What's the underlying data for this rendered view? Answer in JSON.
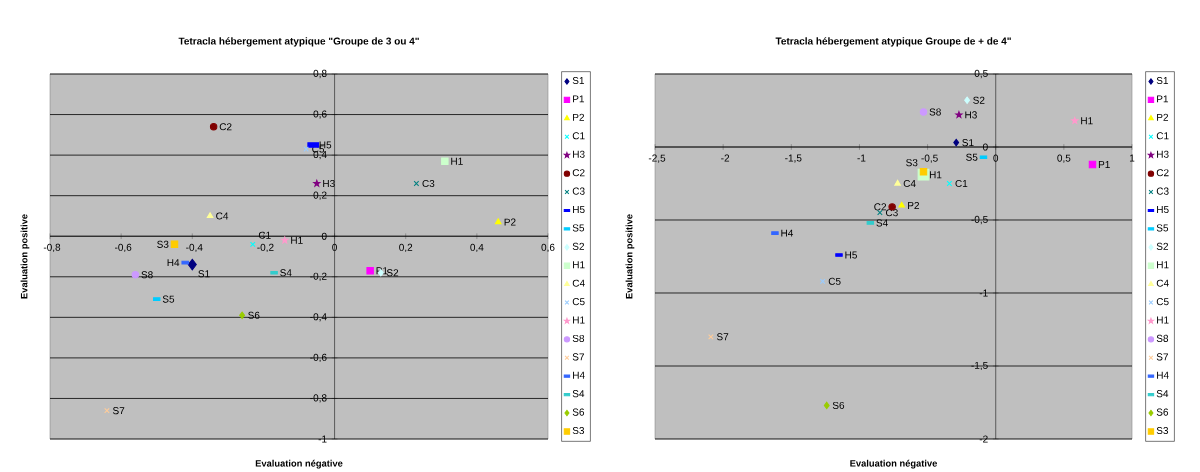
{
  "chart_data": [
    {
      "type": "scatter",
      "title": "Tetracla hébergement atypique \"Groupe de 3 ou 4\"",
      "xlabel": "Evaluation négative",
      "ylabel": "Evaluation positive",
      "xlim": [
        -0.8,
        0.6
      ],
      "ylim": [
        -1,
        0.8
      ],
      "xticks": [
        {
          "value": -0.8,
          "label": "-0,8"
        },
        {
          "value": -0.6,
          "label": "-0,6"
        },
        {
          "value": -0.4,
          "label": "-0,4"
        },
        {
          "value": -0.2,
          "label": "-0,2"
        },
        0,
        {
          "value": 0.2,
          "label": "0,2"
        },
        {
          "value": 0.4,
          "label": "0,4"
        },
        {
          "value": 0.6,
          "label": "0,6"
        }
      ],
      "yticks": [
        -1,
        {
          "value": -0.8,
          "label": "-0,8"
        },
        {
          "value": -0.6,
          "label": "-0,6"
        },
        {
          "value": -0.4,
          "label": "-0,4"
        },
        {
          "value": -0.2,
          "label": "-0,2"
        },
        0,
        {
          "value": 0.2,
          "label": "0,2"
        },
        {
          "value": 0.4,
          "label": "0,4"
        },
        {
          "value": 0.6,
          "label": "0,6"
        },
        {
          "value": 0.8,
          "label": "0,8"
        }
      ],
      "grid": "y",
      "legend": "right",
      "series": [
        {
          "name": "S1",
          "color": "#000080",
          "marker": "diamond",
          "x": [
            -0.4
          ],
          "values": [
            -0.14
          ]
        },
        {
          "name": "P1",
          "color": "#ff00ff",
          "marker": "square",
          "x": [
            0.1
          ],
          "values": [
            -0.17
          ]
        },
        {
          "name": "P2",
          "color": "#ffff00",
          "marker": "triangle",
          "x": [
            0.46
          ],
          "values": [
            0.07
          ]
        },
        {
          "name": "C1",
          "color": "#00ffff",
          "marker": "cross",
          "x": [
            -0.23
          ],
          "values": [
            -0.04
          ]
        },
        {
          "name": "H3",
          "color": "#800080",
          "marker": "star",
          "x": [
            -0.05
          ],
          "values": [
            0.26
          ]
        },
        {
          "name": "C2",
          "color": "#800000",
          "marker": "circle",
          "x": [
            -0.34
          ],
          "values": [
            0.54
          ]
        },
        {
          "name": "C3",
          "color": "#008080",
          "marker": "cross",
          "x": [
            0.23
          ],
          "values": [
            0.26
          ]
        },
        {
          "name": "H5",
          "color": "#0000ff",
          "marker": "square",
          "x": [
            -0.06
          ],
          "values": [
            0.45
          ]
        },
        {
          "name": "S5",
          "color": "#00ccff",
          "marker": "square",
          "x": [
            -0.5
          ],
          "values": [
            -0.31
          ]
        },
        {
          "name": "S2",
          "color": "#ccffff",
          "marker": "diamond",
          "x": [
            0.13
          ],
          "values": [
            -0.18
          ]
        },
        {
          "name": "H1",
          "color": "#ccffcc",
          "marker": "square",
          "x": [
            0.31
          ],
          "values": [
            0.37
          ]
        },
        {
          "name": "C4",
          "color": "#ffff99",
          "marker": "triangle",
          "x": [
            -0.35
          ],
          "values": [
            0.1
          ]
        },
        {
          "name": "C5",
          "color": "#99ccff",
          "marker": "cross",
          "x": [
            -0.08
          ],
          "values": [
            0.43
          ]
        },
        {
          "name": "H1",
          "color": "#ff99cc",
          "marker": "star",
          "x": [
            -0.14
          ],
          "values": [
            -0.02
          ]
        },
        {
          "name": "S8",
          "color": "#cc99ff",
          "marker": "circle",
          "x": [
            -0.56
          ],
          "values": [
            -0.19
          ]
        },
        {
          "name": "S7",
          "color": "#ffcc99",
          "marker": "cross",
          "x": [
            -0.64
          ],
          "values": [
            -0.86
          ]
        },
        {
          "name": "H4",
          "color": "#3366ff",
          "marker": "square",
          "x": [
            -0.42
          ],
          "values": [
            -0.13
          ]
        },
        {
          "name": "S4",
          "color": "#33cccc",
          "marker": "square",
          "x": [
            -0.17
          ],
          "values": [
            -0.18
          ]
        },
        {
          "name": "S6",
          "color": "#99cc00",
          "marker": "diamond",
          "x": [
            -0.26
          ],
          "values": [
            -0.39
          ]
        },
        {
          "name": "S3",
          "color": "#ffcc00",
          "marker": "square",
          "x": [
            -0.45
          ],
          "values": [
            -0.04
          ]
        }
      ]
    },
    {
      "type": "scatter",
      "title": "Tetracla hébergement atypique Groupe de + de 4\"",
      "xlabel": "Evaluation négative",
      "ylabel": "Evaluation positive",
      "xlim": [
        -2.5,
        1
      ],
      "ylim": [
        -2,
        0.5
      ],
      "xticks": [
        {
          "value": -2.5,
          "label": "-2,5"
        },
        -2,
        {
          "value": -1.5,
          "label": "-1,5"
        },
        -1,
        {
          "value": -0.5,
          "label": "-0,5"
        },
        0,
        {
          "value": 0.5,
          "label": "0,5"
        },
        1
      ],
      "yticks": [
        -2,
        {
          "value": -1.5,
          "label": "-1,5"
        },
        -1,
        {
          "value": -0.5,
          "label": "-0,5"
        },
        0,
        {
          "value": 0.5,
          "label": "0,5"
        }
      ],
      "grid": "y",
      "legend": "right",
      "series": [
        {
          "name": "S1",
          "color": "#000080",
          "marker": "diamond",
          "x": [
            -0.29
          ],
          "values": [
            0.03
          ]
        },
        {
          "name": "P1",
          "color": "#ff00ff",
          "marker": "square",
          "x": [
            0.71
          ],
          "values": [
            -0.12
          ]
        },
        {
          "name": "P2",
          "color": "#ffff00",
          "marker": "triangle",
          "x": [
            -0.69
          ],
          "values": [
            -0.4
          ]
        },
        {
          "name": "C1",
          "color": "#00ffff",
          "marker": "cross",
          "x": [
            -0.34
          ],
          "values": [
            -0.25
          ]
        },
        {
          "name": "H3",
          "color": "#800080",
          "marker": "star",
          "x": [
            -0.27
          ],
          "values": [
            0.22
          ]
        },
        {
          "name": "C2",
          "color": "#800000",
          "marker": "circle",
          "x": [
            -0.76
          ],
          "values": [
            -0.41
          ]
        },
        {
          "name": "C3",
          "color": "#008080",
          "marker": "cross",
          "x": [
            -0.85
          ],
          "values": [
            -0.45
          ]
        },
        {
          "name": "H5",
          "color": "#0000ff",
          "marker": "square",
          "x": [
            -1.15
          ],
          "values": [
            -0.74
          ]
        },
        {
          "name": "S5",
          "color": "#00ccff",
          "marker": "square",
          "x": [
            -0.09
          ],
          "values": [
            -0.07
          ]
        },
        {
          "name": "S2",
          "color": "#ccffff",
          "marker": "diamond",
          "x": [
            -0.21
          ],
          "values": [
            0.32
          ]
        },
        {
          "name": "H1",
          "color": "#ccffcc",
          "marker": "square",
          "x": [
            -0.53
          ],
          "values": [
            -0.19
          ]
        },
        {
          "name": "C4",
          "color": "#ffff99",
          "marker": "triangle",
          "x": [
            -0.72
          ],
          "values": [
            -0.25
          ]
        },
        {
          "name": "C5",
          "color": "#99ccff",
          "marker": "cross",
          "x": [
            -1.27
          ],
          "values": [
            -0.92
          ]
        },
        {
          "name": "H1",
          "color": "#ff99cc",
          "marker": "star",
          "x": [
            0.58
          ],
          "values": [
            0.18
          ]
        },
        {
          "name": "S8",
          "color": "#cc99ff",
          "marker": "circle",
          "x": [
            -0.53
          ],
          "values": [
            0.24
          ]
        },
        {
          "name": "S7",
          "color": "#ffcc99",
          "marker": "cross",
          "x": [
            -2.09
          ],
          "values": [
            -1.3
          ]
        },
        {
          "name": "H4",
          "color": "#3366ff",
          "marker": "square",
          "x": [
            -1.62
          ],
          "values": [
            -0.59
          ]
        },
        {
          "name": "S4",
          "color": "#33cccc",
          "marker": "square",
          "x": [
            -0.92
          ],
          "values": [
            -0.52
          ]
        },
        {
          "name": "S6",
          "color": "#99cc00",
          "marker": "diamond",
          "x": [
            -1.24
          ],
          "values": [
            -1.77
          ]
        },
        {
          "name": "S3",
          "color": "#ffcc00",
          "marker": "square",
          "x": [
            -0.53
          ],
          "values": [
            -0.17
          ]
        }
      ]
    }
  ]
}
